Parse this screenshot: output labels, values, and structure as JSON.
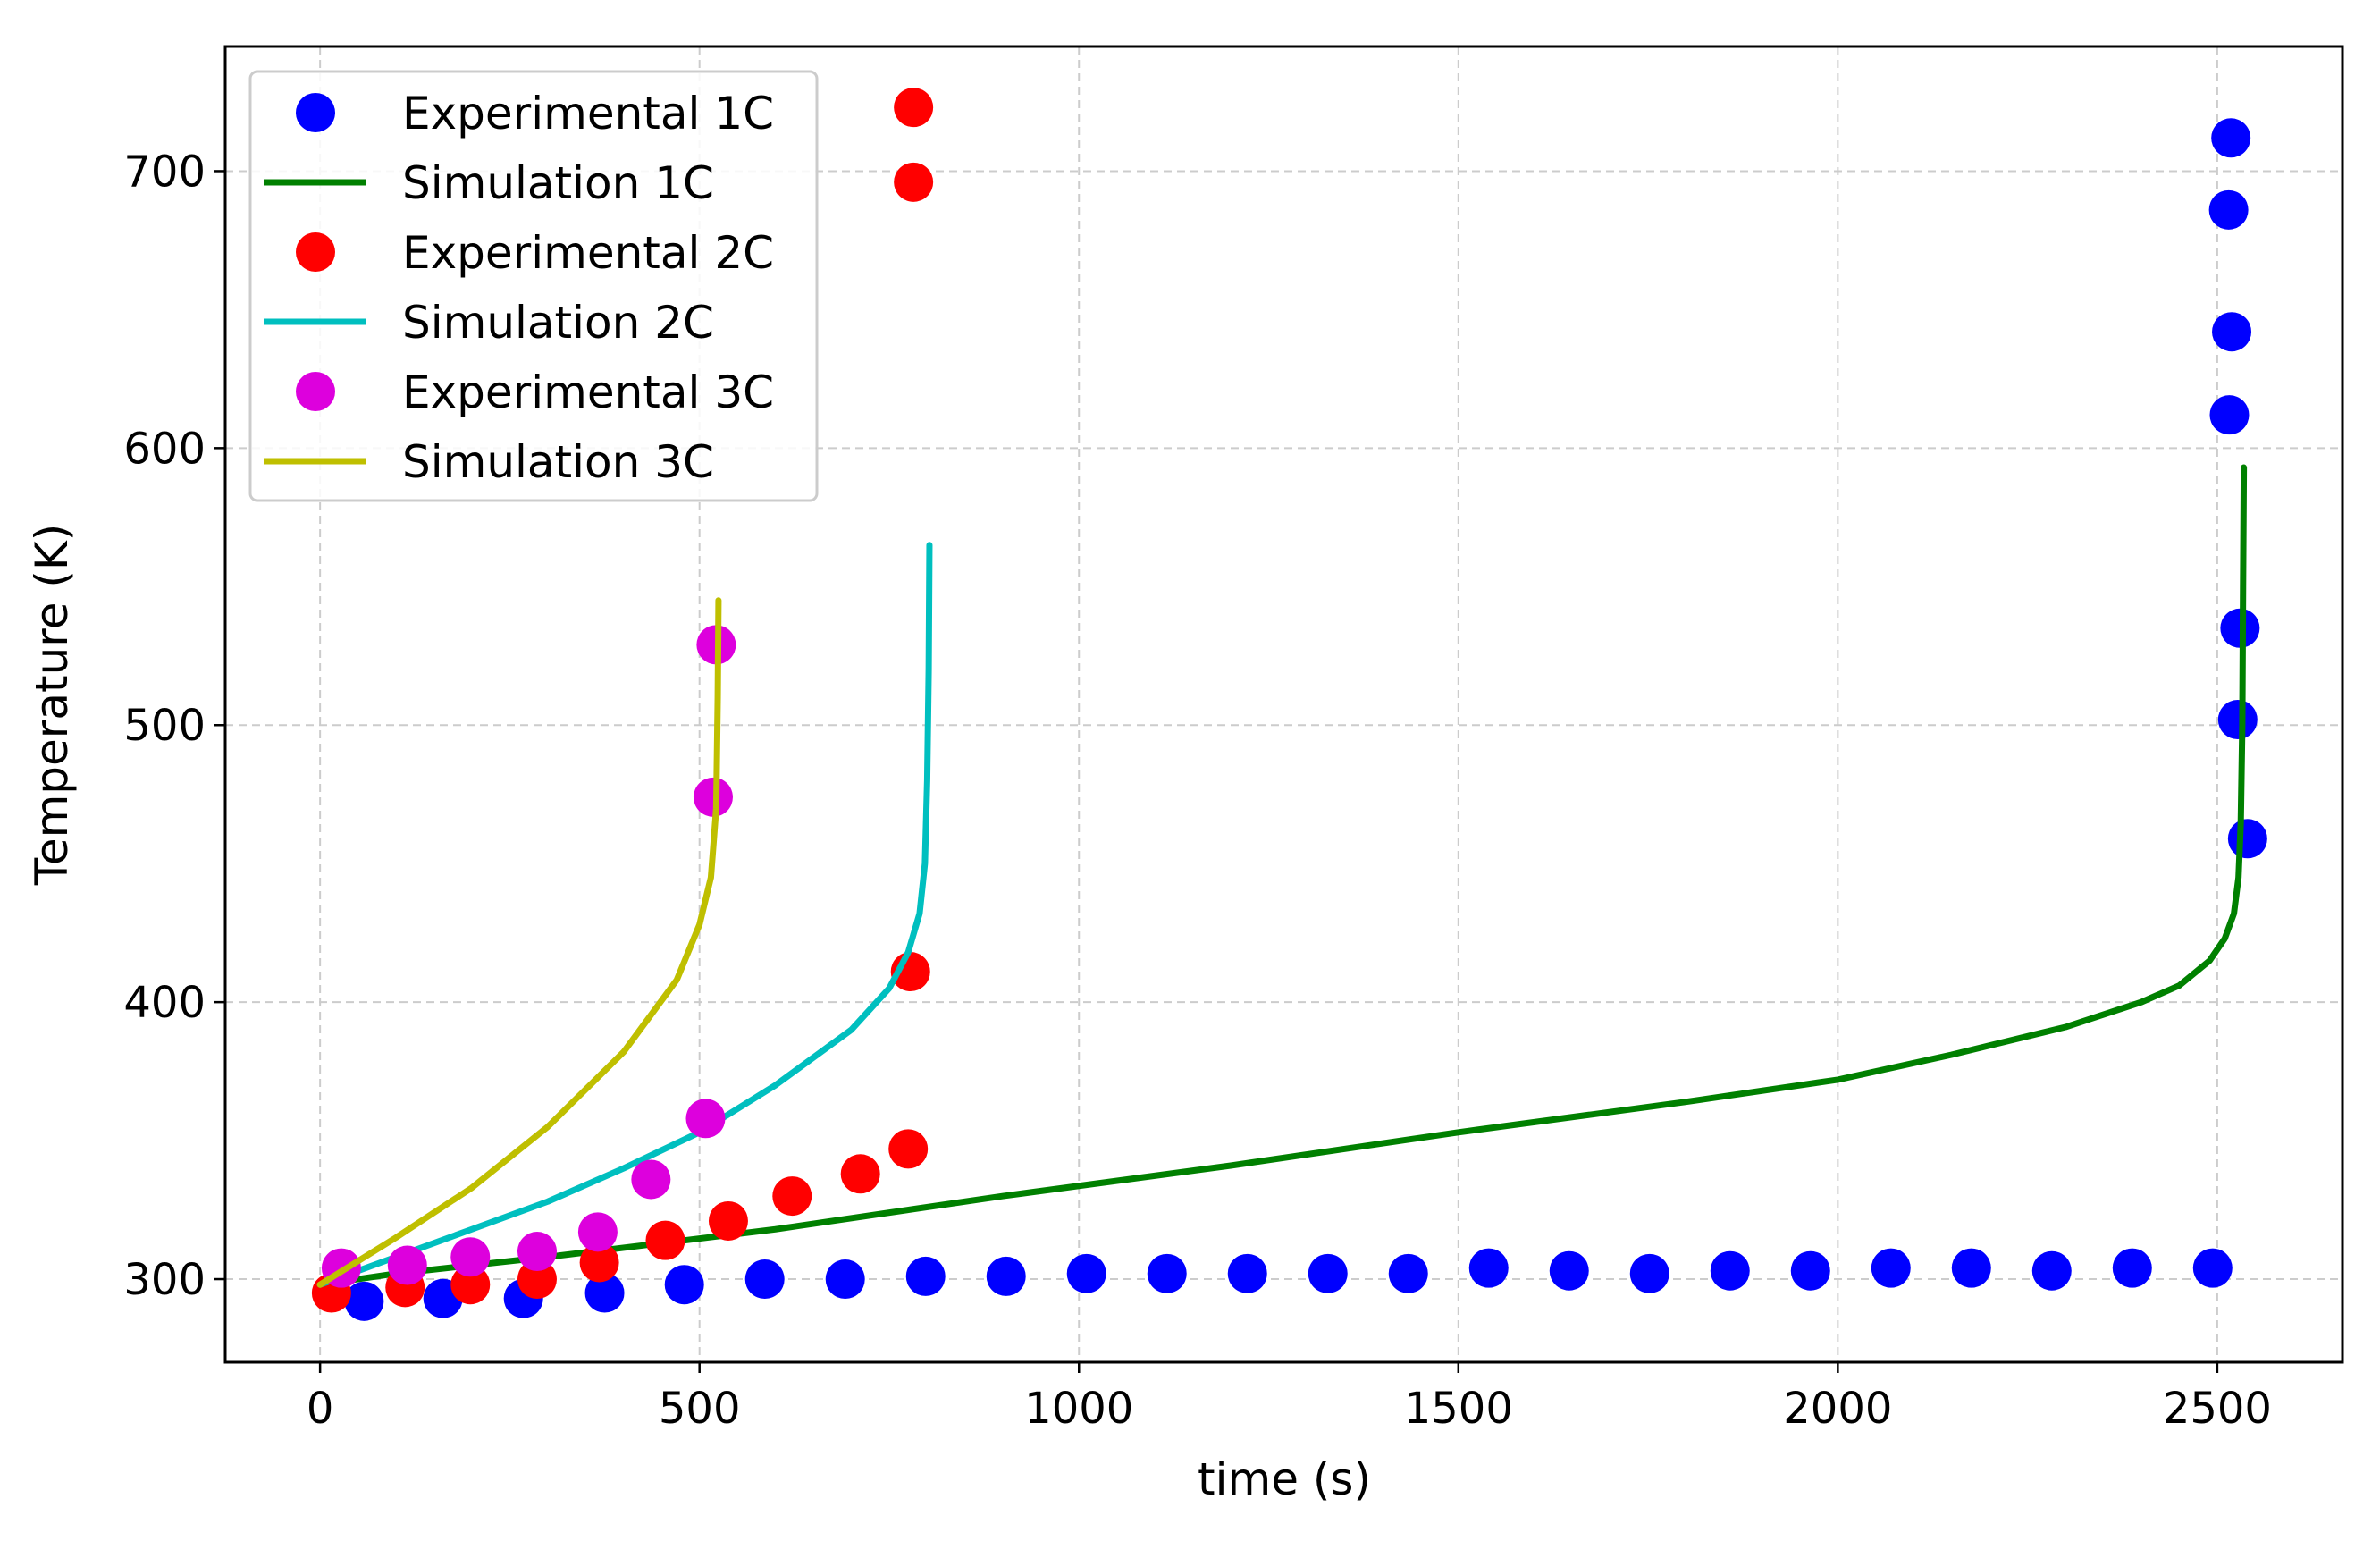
{
  "chart_data": {
    "type": "scatter",
    "title": "",
    "xlabel": "time (s)",
    "ylabel": "Temperature (K)",
    "xlim": [
      -125,
      2665
    ],
    "ylim": [
      270,
      745
    ],
    "grid": true,
    "legend_position": "top-left",
    "x_ticks": [
      0,
      500,
      1000,
      1500,
      2000,
      2500
    ],
    "y_ticks": [
      300,
      400,
      500,
      600,
      700
    ],
    "series": [
      {
        "name": "Experimental 1C",
        "kind": "scatter",
        "color": "#0000ff",
        "points": [
          [
            58,
            292
          ],
          [
            162,
            293
          ],
          [
            268,
            293
          ],
          [
            375,
            295
          ],
          [
            480,
            298
          ],
          [
            586,
            300
          ],
          [
            692,
            300
          ],
          [
            798,
            301
          ],
          [
            904,
            301
          ],
          [
            1010,
            302
          ],
          [
            1116,
            302
          ],
          [
            1222,
            302
          ],
          [
            1328,
            302
          ],
          [
            1434,
            302
          ],
          [
            1540,
            304
          ],
          [
            1646,
            303
          ],
          [
            1752,
            302
          ],
          [
            1858,
            303
          ],
          [
            1964,
            303
          ],
          [
            2070,
            304
          ],
          [
            2176,
            304
          ],
          [
            2282,
            303
          ],
          [
            2388,
            304
          ],
          [
            2494,
            304
          ],
          [
            2540,
            459
          ],
          [
            2527,
            502
          ],
          [
            2530,
            535
          ],
          [
            2516,
            612
          ],
          [
            2519,
            642
          ],
          [
            2515,
            686
          ],
          [
            2518,
            712
          ]
        ]
      },
      {
        "name": "Simulation 1C",
        "kind": "line",
        "color": "#008000",
        "points": [
          [
            0,
            298
          ],
          [
            100,
            302
          ],
          [
            300,
            308
          ],
          [
            600,
            318
          ],
          [
            900,
            330
          ],
          [
            1200,
            341
          ],
          [
            1500,
            353
          ],
          [
            1800,
            364
          ],
          [
            2000,
            372
          ],
          [
            2150,
            381
          ],
          [
            2300,
            391
          ],
          [
            2400,
            400
          ],
          [
            2450,
            406
          ],
          [
            2490,
            415
          ],
          [
            2510,
            423
          ],
          [
            2522,
            432
          ],
          [
            2528,
            445
          ],
          [
            2531,
            465
          ],
          [
            2533,
            500
          ],
          [
            2534,
            550
          ],
          [
            2535,
            593
          ]
        ]
      },
      {
        "name": "Experimental 2C",
        "kind": "scatter",
        "color": "#ff0000",
        "points": [
          [
            15,
            295
          ],
          [
            112,
            297
          ],
          [
            198,
            298
          ],
          [
            286,
            300
          ],
          [
            368,
            306
          ],
          [
            455,
            314
          ],
          [
            538,
            321
          ],
          [
            622,
            330
          ],
          [
            712,
            338
          ],
          [
            775,
            347
          ],
          [
            778,
            411
          ],
          [
            782,
            696
          ],
          [
            782,
            723
          ]
        ]
      },
      {
        "name": "Simulation 2C",
        "kind": "line",
        "color": "#00bfbf",
        "points": [
          [
            0,
            298
          ],
          [
            100,
            308
          ],
          [
            200,
            318
          ],
          [
            300,
            328
          ],
          [
            400,
            340
          ],
          [
            500,
            353
          ],
          [
            600,
            370
          ],
          [
            700,
            390
          ],
          [
            750,
            405
          ],
          [
            775,
            418
          ],
          [
            790,
            432
          ],
          [
            797,
            450
          ],
          [
            800,
            480
          ],
          [
            802,
            520
          ],
          [
            803,
            565
          ]
        ]
      },
      {
        "name": "Experimental 3C",
        "kind": "scatter",
        "color": "#dd00dd",
        "points": [
          [
            28,
            304
          ],
          [
            115,
            305
          ],
          [
            198,
            308
          ],
          [
            286,
            310
          ],
          [
            366,
            317
          ],
          [
            436,
            336
          ],
          [
            508,
            358
          ],
          [
            518,
            474
          ],
          [
            522,
            529
          ]
        ]
      },
      {
        "name": "Simulation 3C",
        "kind": "line",
        "color": "#bfbf00",
        "points": [
          [
            0,
            298
          ],
          [
            100,
            315
          ],
          [
            200,
            333
          ],
          [
            300,
            355
          ],
          [
            400,
            382
          ],
          [
            470,
            408
          ],
          [
            500,
            428
          ],
          [
            515,
            445
          ],
          [
            522,
            470
          ],
          [
            524,
            510
          ],
          [
            525,
            545
          ]
        ]
      }
    ]
  }
}
